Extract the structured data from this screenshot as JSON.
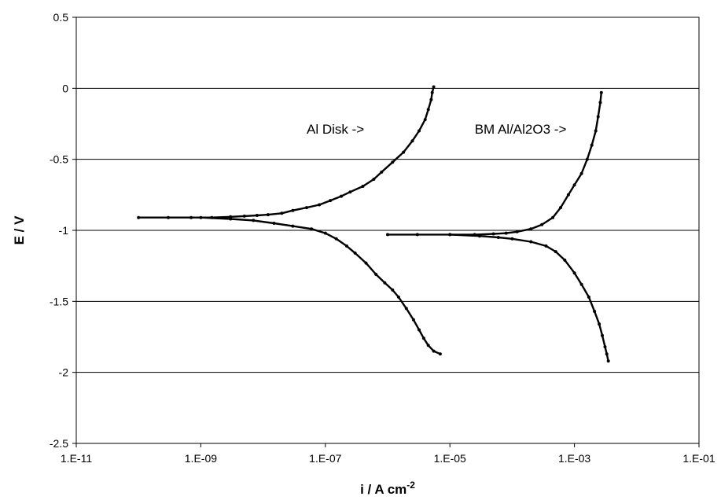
{
  "chart_data": {
    "type": "line",
    "title": "",
    "xlabel": "i / A cm",
    "xlabel_superscript": "-2",
    "ylabel": "E / V",
    "x_scale": "log",
    "xlim": [
      1e-11,
      0.1
    ],
    "ylim": [
      -2.5,
      0.5
    ],
    "x_ticks": [
      1e-11,
      1e-09,
      1e-07,
      1e-05,
      0.001,
      0.1
    ],
    "x_tick_labels": [
      "1.E-11",
      "1.E-09",
      "1.E-07",
      "1.E-05",
      "1.E-03",
      "1.E-01"
    ],
    "y_ticks": [
      0.5,
      0,
      -0.5,
      -1,
      -1.5,
      -2,
      -2.5
    ],
    "y_tick_labels": [
      "0.5",
      "0",
      "-0.5",
      "-1",
      "-1.5",
      "-2",
      "-2.5"
    ],
    "grid": "horizontal",
    "legend": "none",
    "line_color": "#000000",
    "annotations": [
      {
        "text": "Al Disk ->",
        "x": 5e-08,
        "y": -0.32
      },
      {
        "text": "BM Al/Al2O3 ->",
        "x": 2.5e-05,
        "y": -0.32
      }
    ],
    "series": [
      {
        "x": [
          1e-10,
          3e-10,
          7e-10,
          1.5e-09,
          3e-09,
          5e-09,
          8e-09,
          1.2e-08,
          2e-08,
          3e-08,
          5e-08,
          8e-08,
          1.2e-07,
          1.8e-07,
          2.5e-07,
          4e-07,
          6e-07,
          8e-07,
          1.2e-06,
          1.8e-06,
          2.5e-06,
          3.2e-06,
          4e-06,
          4.5e-06,
          5e-06,
          5.2e-06,
          5.5e-06
        ],
        "y": [
          -0.91,
          -0.91,
          -0.91,
          -0.91,
          -0.905,
          -0.9,
          -0.895,
          -0.89,
          -0.88,
          -0.86,
          -0.84,
          -0.82,
          -0.79,
          -0.76,
          -0.73,
          -0.69,
          -0.64,
          -0.59,
          -0.52,
          -0.45,
          -0.37,
          -0.3,
          -0.22,
          -0.15,
          -0.08,
          -0.03,
          0.01
        ]
      },
      {
        "x": [
          1e-09,
          3e-09,
          7e-09,
          1.5e-08,
          3e-08,
          6e-08,
          1e-07,
          1.5e-07,
          2.2e-07,
          3e-07,
          4.5e-07,
          6.5e-07,
          9e-07,
          1.2e-06,
          1.5e-06,
          2e-06,
          2.6e-06,
          3.2e-06,
          3.8e-06,
          4.5e-06,
          5.5e-06,
          7e-06
        ],
        "y": [
          -0.91,
          -0.92,
          -0.93,
          -0.95,
          -0.97,
          -0.99,
          -1.02,
          -1.06,
          -1.11,
          -1.16,
          -1.23,
          -1.31,
          -1.37,
          -1.42,
          -1.47,
          -1.55,
          -1.63,
          -1.7,
          -1.76,
          -1.81,
          -1.85,
          -1.87
        ]
      },
      {
        "x": [
          1e-06,
          3e-06,
          1e-05,
          2.5e-05,
          5e-05,
          8e-05,
          0.00012,
          0.0002,
          0.0003,
          0.00045,
          0.0006,
          0.0008,
          0.001,
          0.0013,
          0.0016,
          0.0019,
          0.0022,
          0.0024,
          0.0026,
          0.0027
        ],
        "y": [
          -1.03,
          -1.03,
          -1.03,
          -1.03,
          -1.025,
          -1.02,
          -1.01,
          -0.99,
          -0.96,
          -0.91,
          -0.84,
          -0.75,
          -0.68,
          -0.6,
          -0.5,
          -0.4,
          -0.3,
          -0.2,
          -0.1,
          -0.03
        ]
      },
      {
        "x": [
          1e-05,
          3e-05,
          6e-05,
          0.0001,
          0.0002,
          0.00035,
          0.0005,
          0.0007,
          0.001,
          0.0013,
          0.0017,
          0.0021,
          0.0025,
          0.0028,
          0.0031,
          0.0033,
          0.0035
        ],
        "y": [
          -1.03,
          -1.04,
          -1.05,
          -1.06,
          -1.08,
          -1.11,
          -1.15,
          -1.21,
          -1.3,
          -1.38,
          -1.47,
          -1.57,
          -1.66,
          -1.74,
          -1.82,
          -1.87,
          -1.92
        ]
      }
    ]
  }
}
